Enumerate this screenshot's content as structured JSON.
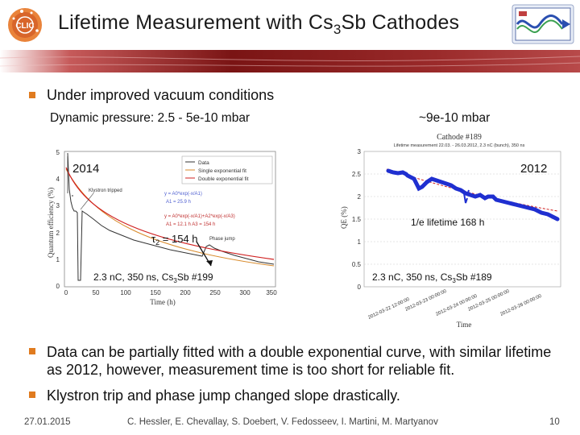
{
  "header": {
    "logo_text": "CLIC",
    "title_pre": "Lifetime Measurement with Cs",
    "title_sub": "3",
    "title_post": "Sb Cathodes"
  },
  "bullets": {
    "vacuum": "Under improved vacuum conditions",
    "dyn_pressure": "Dynamic pressure: 2.5 - 5e-10 mbar",
    "pressure_2012": "~9e-10 mbar",
    "fit_note": "Data can be partially fitted with a double exponential curve, with similar lifetime as 2012, however, measurement time is too short for reliable fit.",
    "klystron_note": "Klystron trip and phase jump changed slope drastically."
  },
  "left_plot": {
    "year": "2014",
    "ylabel": "Quantum efficiency (%)",
    "xlabel": "Time (h)",
    "x_ticks": [
      "0",
      "50",
      "100",
      "150",
      "200",
      "250",
      "300",
      "350"
    ],
    "y_ticks": [
      "0",
      "1",
      "2",
      "3",
      "4",
      "5"
    ],
    "legend": [
      "Data",
      "Single exponential fit",
      "Double exponential fit"
    ],
    "fit1_formula": "y = A0*exp(-x/A1)",
    "fit1_param": "A1 = 25.9 h",
    "fit2_formula": "y = A0*exp(-x/A1)+A2*exp(-x/A3)",
    "fit2_param": "A1 = 12.1 h     A3 = 154 h",
    "klystron_label": "Klystron tripped",
    "phase_label": "Phase jump",
    "tau_symbol": "τ",
    "tau_sub": "2",
    "tau_value": " = 154 h",
    "caption_pre": "2.3 nC, 350 ns, Cs",
    "caption_sub": "3",
    "caption_post": "Sb #199"
  },
  "right_plot": {
    "year": "2012",
    "header_title": "Cathode #189",
    "header_sub": "Lifetime measurement 22.03. - 26.03.2012, 2.3 nC (bunch), 350 ns",
    "ylabel": "QE (%)",
    "xlabel": "Time",
    "y_ticks": [
      "0",
      "0.5",
      "1",
      "1.5",
      "2",
      "2.5",
      "3"
    ],
    "x_ticks": [
      "2012-03-22 12:00:00",
      "2012-03-23 00:00:00",
      "2012-03-24 00:00:00",
      "2012-03-25 00:00:00",
      "2012-03-26 00:00:00"
    ],
    "lifetime_label": "1/e lifetime 168 h",
    "caption_pre": "2.3 nC, 350 ns, Cs",
    "caption_sub": "3",
    "caption_post": "Sb #189"
  },
  "footer": {
    "date": "27.01.2015",
    "authors": "C. Hessler, E. Chevallay, S. Doebert, V. Fedosseev, I. Martini, M. Martyanov",
    "page": "10"
  },
  "colors": {
    "accent": "#e07b1f",
    "band": "#8a1f1f",
    "data_blue": "#1f2fd0",
    "fit_red": "#d02020",
    "fit_orange": "#d88a2a"
  }
}
